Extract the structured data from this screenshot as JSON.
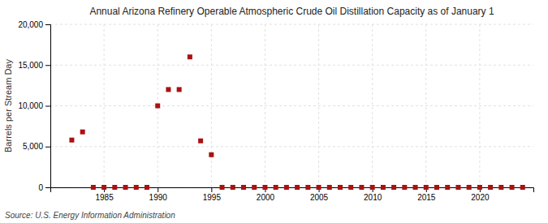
{
  "chart_data": {
    "type": "scatter",
    "title": "Annual Arizona Refinery Operable Atmospheric Crude Oil Distillation Capacity as of January 1",
    "ylabel": "Barrels per Stream Day",
    "annotations": [
      "Source: U.S. Energy Information Administration"
    ],
    "x": [
      1982,
      1983,
      1984,
      1985,
      1986,
      1987,
      1988,
      1989,
      1990,
      1991,
      1992,
      1993,
      1994,
      1995,
      1996,
      1997,
      1998,
      1999,
      2000,
      2001,
      2002,
      2003,
      2004,
      2005,
      2006,
      2007,
      2008,
      2009,
      2010,
      2011,
      2012,
      2013,
      2014,
      2015,
      2016,
      2017,
      2018,
      2019,
      2020,
      2021,
      2022,
      2023,
      2024
    ],
    "values": [
      5800,
      6800,
      0,
      0,
      0,
      0,
      0,
      0,
      10000,
      12000,
      12000,
      16000,
      5700,
      4000,
      0,
      0,
      0,
      0,
      0,
      0,
      0,
      0,
      0,
      0,
      0,
      0,
      0,
      0,
      0,
      0,
      0,
      0,
      0,
      0,
      0,
      0,
      0,
      0,
      0,
      0,
      0,
      0,
      0
    ],
    "color": "#aa1111",
    "marker": "square",
    "xlim": [
      1980,
      2025
    ],
    "xticks": [
      1985,
      1990,
      1995,
      2000,
      2005,
      2010,
      2015,
      2020
    ],
    "ylim": [
      0,
      20000
    ],
    "yticks": [
      0,
      {
        "value": 5000,
        "label": "5,000"
      },
      {
        "value": 10000,
        "label": "10,000"
      },
      {
        "value": 15000,
        "label": "15,000"
      },
      {
        "value": 20000,
        "label": "20,000"
      }
    ],
    "grid": true
  }
}
